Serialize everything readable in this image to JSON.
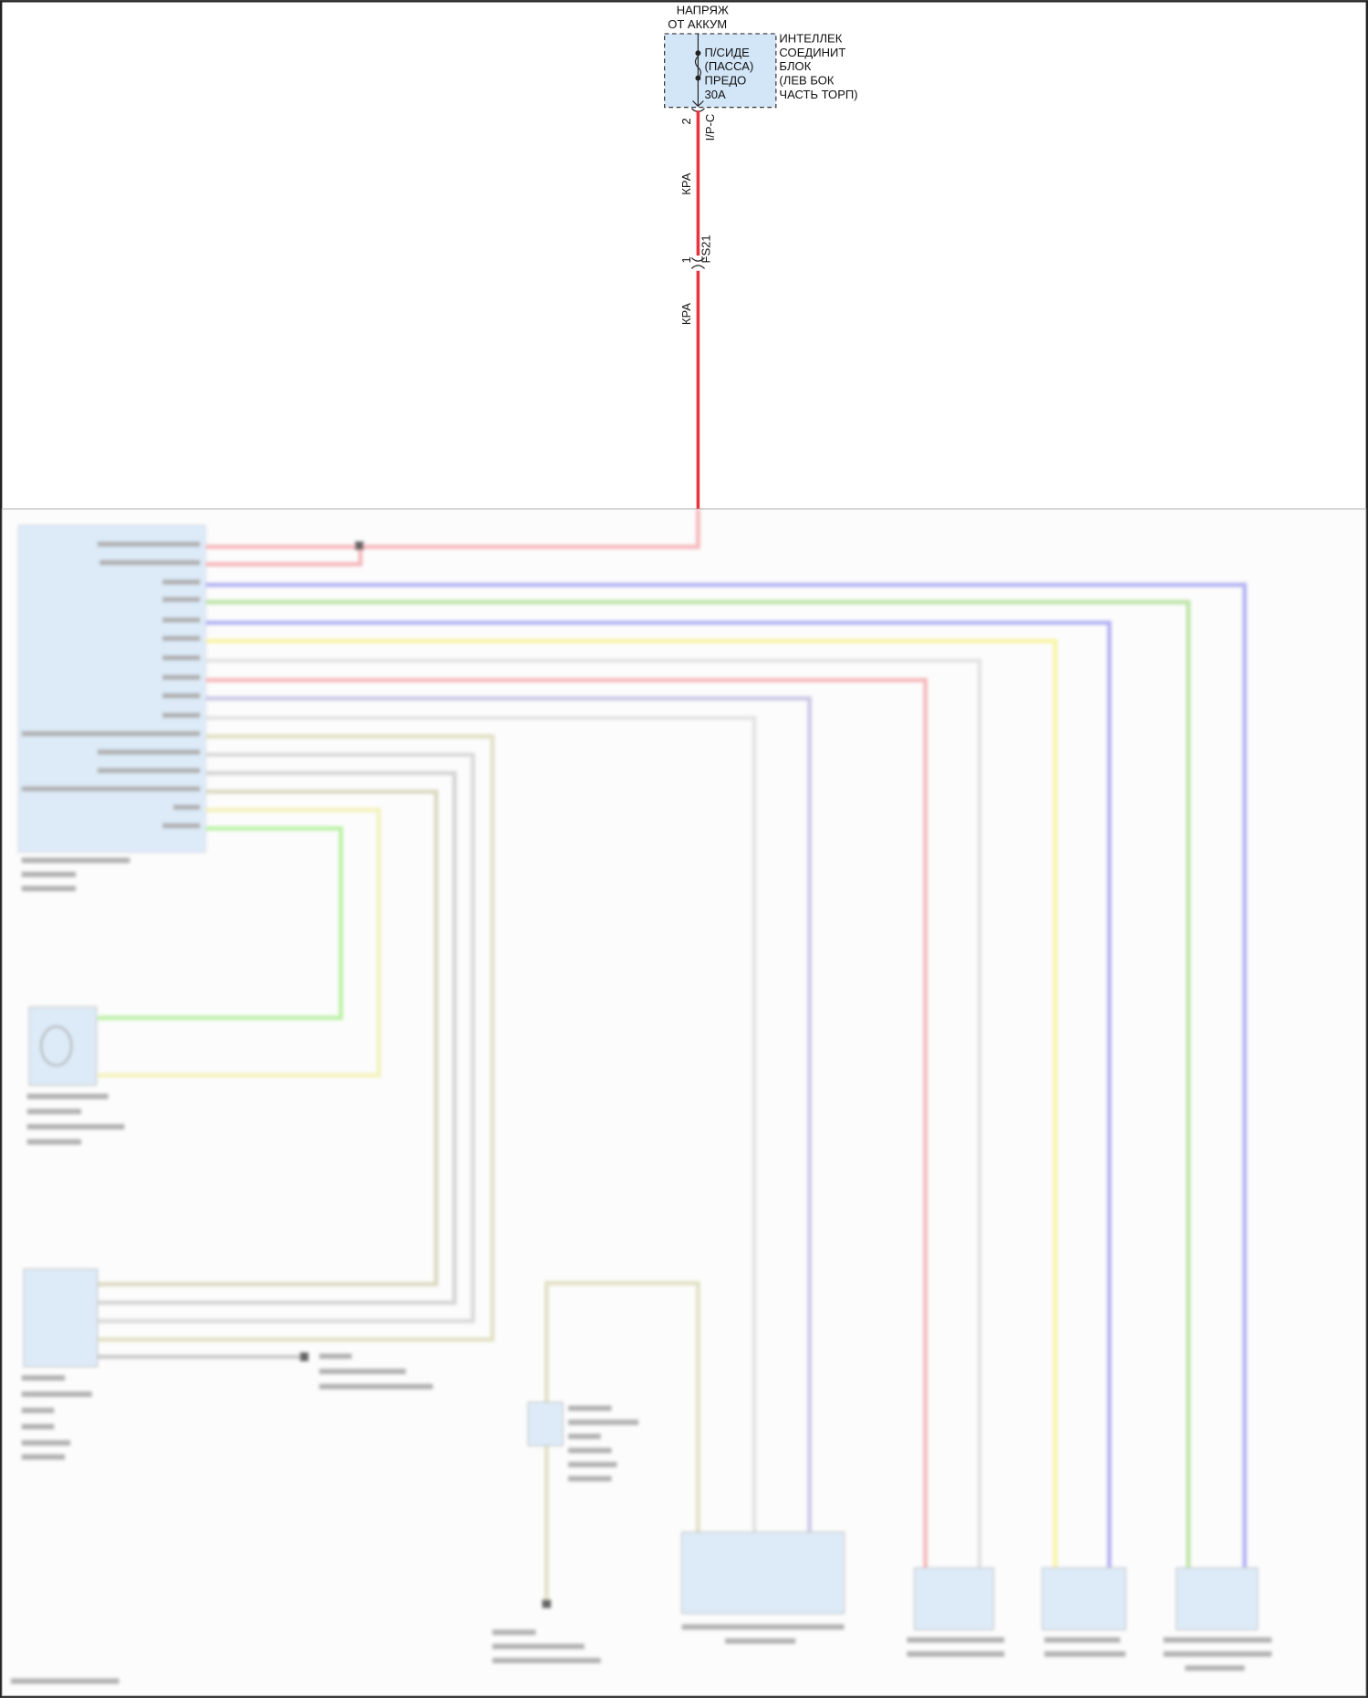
{
  "power_source": {
    "line1": "НАПРЯЖ",
    "line2": "ОТ АККУМ"
  },
  "fuse": {
    "line1": "П/СИДЕ",
    "line2": "(ПАССА)",
    "line3": "ПРЕДО",
    "line4": "30A"
  },
  "junction_block": {
    "line1": "ИНТЕЛЛЕК",
    "line2": "СОЕДИНИТ",
    "line3": "БЛОК",
    "line4": "(ЛЕВ БОК",
    "line5": "ЧАСТЬ ТОРП)"
  },
  "connector_ipc": {
    "pin": "2",
    "name": "I/P-C"
  },
  "connector_fs21": {
    "pin": "1",
    "name": "FS21"
  },
  "wire_color_1": "КРА",
  "wire_color_2": "КРА",
  "colors": {
    "red": "#e8343c",
    "pink": "#f4a3a8",
    "blue": "#9d9cf2",
    "green": "#a8dd8c",
    "yellow": "#f7f28a",
    "gray": "#d8d8d8",
    "olive": "#d9d8b4",
    "module_fill": "#d3e6f8"
  }
}
